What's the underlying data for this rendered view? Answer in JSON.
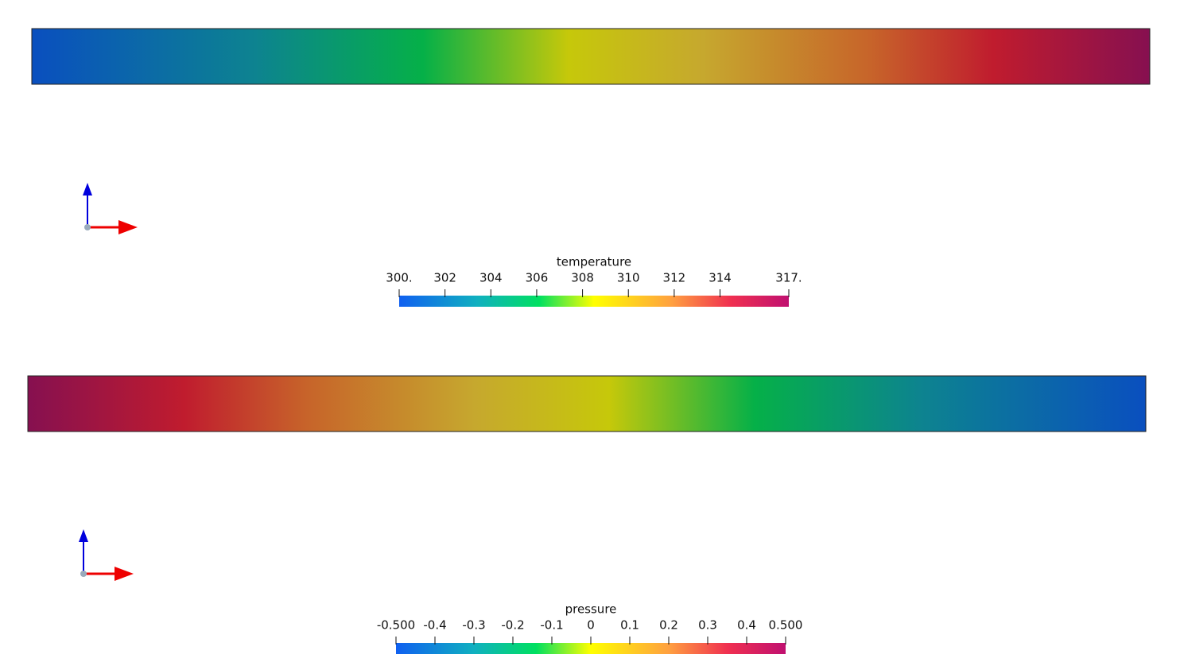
{
  "panels": [
    {
      "colorbar": {
        "title": "temperature",
        "ticks": [
          {
            "value": 300,
            "label": "300."
          },
          302,
          304,
          306,
          308,
          310,
          312,
          314,
          {
            "value": 317,
            "label": "317."
          }
        ]
      }
    },
    {
      "colorbar": {
        "title": "pressure",
        "ticks": [
          {
            "value": -0.5,
            "label": "-0.500"
          },
          -0.4,
          -0.3,
          -0.2,
          -0.1,
          0,
          0.1,
          0.2,
          0.3,
          0.4,
          {
            "value": 0.5,
            "label": "0.500"
          }
        ]
      }
    }
  ]
}
